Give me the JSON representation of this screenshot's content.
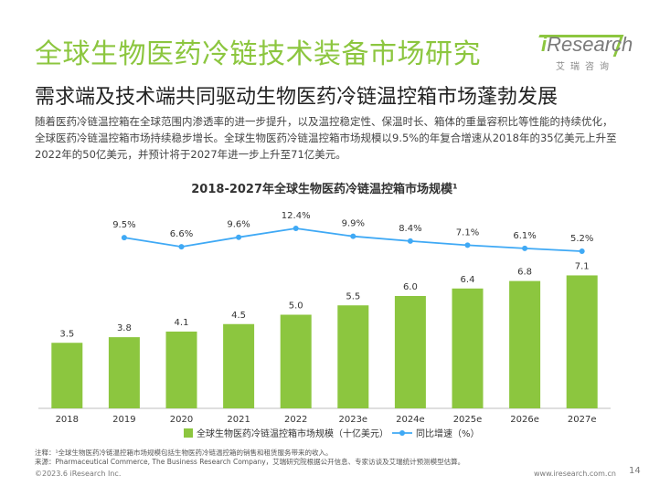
{
  "page": {
    "title": "全球生物医药冷链技术装备市场研究",
    "subtitle": "需求端及技术端共同驱动生物医药冷链温控箱市场蓬勃发展",
    "paragraph": "随着医药冷链温控箱在全球范围内渗透率的进一步提升，以及温控稳定性、保温时长、箱体的重量容积比等性能的持续优化，全球医药冷链温控箱市场持续稳步增长。全球生物医药冷链温控箱市场规模以9.5%的年复合增速从2018年的35亿美元上升至2022年的50亿美元，并预计将于2027年进一步上升至71亿美元。",
    "note": "注释：¹全球生物医药冷链温控箱市场规模包括生物医药冷链温控箱的销售和租赁服务带来的收入。",
    "source": "来源：Pharmaceutical Commerce, The Business Research Company，艾瑞研究院根据公开信息、专家访谈及艾瑞统计预测模型估算。",
    "footer_left": "©2023.6 iResearch Inc.",
    "footer_right": "www.iresearch.com.cn",
    "page_number": "14"
  },
  "logo": {
    "i": "i",
    "word": "Research",
    "cn": "艾瑞咨询"
  },
  "chart_data": {
    "type": "bar",
    "title": "2018-2027年全球生物医药冷链温控箱市场规模¹",
    "categories": [
      "2018",
      "2019",
      "2020",
      "2021",
      "2022",
      "2023e",
      "2024e",
      "2025e",
      "2026e",
      "2027e"
    ],
    "series": [
      {
        "name": "全球生物医药冷链温控箱市场规模（十亿美元）",
        "type": "bar",
        "color": "#8cc63f",
        "values": [
          3.5,
          3.8,
          4.1,
          4.5,
          5.0,
          5.5,
          6.0,
          6.4,
          6.8,
          7.1
        ],
        "labels": [
          "3.5",
          "3.8",
          "4.1",
          "4.5",
          "5.0",
          "5.5",
          "6.0",
          "6.4",
          "6.8",
          "7.1"
        ]
      },
      {
        "name": "同比增速（%）",
        "type": "line",
        "color": "#3fa9f5",
        "values": [
          null,
          9.5,
          6.6,
          9.6,
          12.4,
          9.9,
          8.4,
          7.1,
          6.1,
          5.2
        ],
        "labels": [
          null,
          "9.5%",
          "6.6%",
          "9.6%",
          "12.4%",
          "9.9%",
          "8.4%",
          "7.1%",
          "6.1%",
          "5.2%"
        ]
      }
    ],
    "legend_position": "bottom",
    "grid": false
  }
}
